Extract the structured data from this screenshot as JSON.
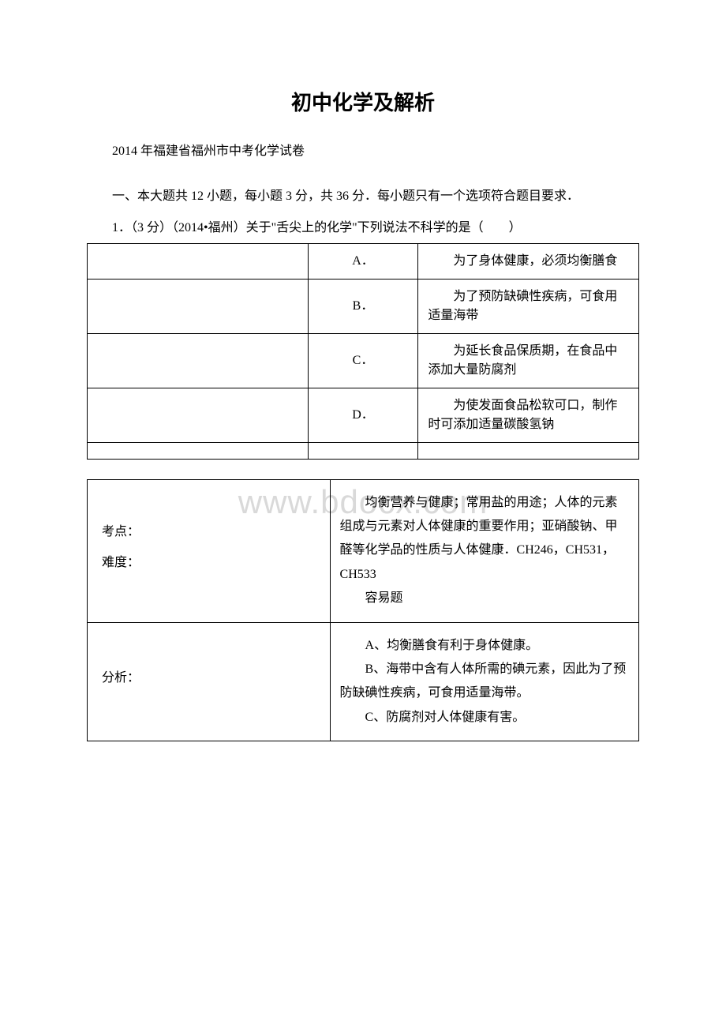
{
  "watermark": "www.bdocx.com",
  "title": "初中化学及解析",
  "subtitle": "2014 年福建省福州市中考化学试卷",
  "sectionIntro": "一、本大题共 12 小题，每小题 3 分，共 36 分．每小题只有一个选项符合题目要求．",
  "question": {
    "number": "1．（3 分）（2014•福州）关于\"舌尖上的化学\"下列说法不科学的是（　　）",
    "options": [
      {
        "label": "A．",
        "text": "为了身体健康，必须均衡膳食"
      },
      {
        "label": "B．",
        "text": "为了预防缺碘性疾病，可食用适量海带"
      },
      {
        "label": "C．",
        "text": "为延长食品保质期，在食品中添加大量防腐剂"
      },
      {
        "label": "D．",
        "text": "为使发面食品松软可口，制作时可添加适量碳酸氢钠"
      }
    ]
  },
  "analysis": {
    "row1": {
      "leftLabels": [
        "考点：",
        "难度："
      ],
      "rightParas": [
        "均衡营养与健康；常用盐的用途；人体的元素组成与元素对人体健康的重要作用；亚硝酸钠、甲醛等化学品的性质与人体健康．CH246，CH531，CH533",
        "容易题"
      ]
    },
    "row2": {
      "leftLabel": "分析：",
      "rightParas": [
        "A、均衡膳食有利于身体健康。",
        "B、海带中含有人体所需的碘元素，因此为了预防缺碘性疾病，可食用适量海带。",
        "C、防腐剂对人体健康有害。"
      ]
    }
  },
  "colors": {
    "text": "#000000",
    "border": "#000000",
    "background": "#ffffff",
    "watermark": "#d9d9d9"
  },
  "typography": {
    "titleFontSize": 26,
    "bodyFontSize": 16,
    "watermarkFontSize": 42,
    "fontFamily": "SimSun"
  },
  "layout": {
    "pageWidth": 920,
    "pageHeight": 1302
  }
}
